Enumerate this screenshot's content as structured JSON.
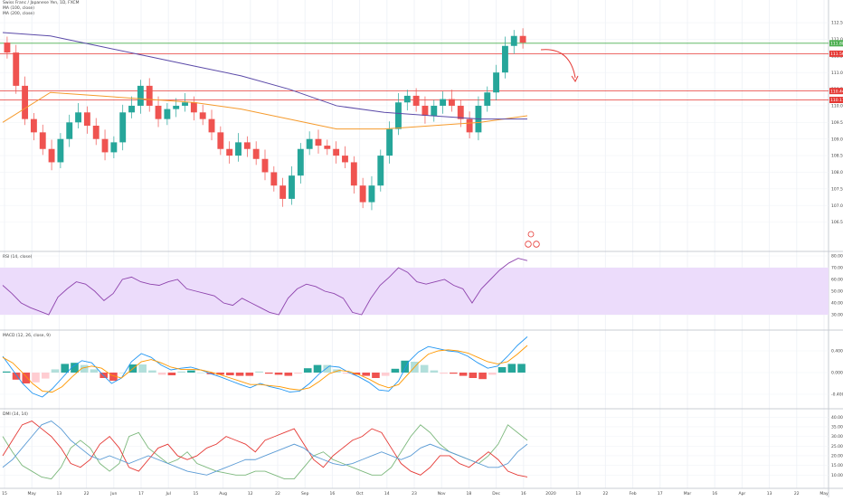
{
  "header": {
    "symbol_line": "Swiss Franc / Japanese Yen, 1D, FXCM",
    "ma1_label": "MA (100, close)",
    "ma2_label": "MA (200, close)"
  },
  "indicators": {
    "rsi_label": "RSI (14, close)",
    "macd_label": "MACD (12, 26, close, 9)",
    "dmi_label": "DMI (14, 14)"
  },
  "colors": {
    "bull": "#26a69a",
    "bear": "#ef5350",
    "ma100": "#f59a2c",
    "ma200": "#5b4aa8",
    "level_green": "#4caf50",
    "level_red": "#e53935",
    "rsi_band": "#ecdcfb",
    "macd_line": "#2196f3",
    "signal_line": "#ff9800",
    "di_plus": "#7cb87c",
    "di_minus": "#e53935",
    "adx": "#5b9bd5"
  },
  "chart_data": [
    {
      "type": "candlestick",
      "panel": "price",
      "title": "Swiss Franc / Japanese Yen, 1D, FXCM",
      "series": [
        {
          "name": "MA (100, close)",
          "values": [
            109.5,
            110.4,
            110.3,
            110.2,
            110.1,
            109.9,
            109.6,
            109.3,
            109.3,
            109.4,
            109.5,
            109.7
          ]
        },
        {
          "name": "MA (200, close)",
          "values": [
            112.2,
            112.1,
            111.8,
            111.5,
            111.2,
            110.9,
            110.5,
            110.0,
            109.8,
            109.7,
            109.6,
            109.6
          ]
        }
      ],
      "closes": [
        111.6,
        110.6,
        109.6,
        109.2,
        108.7,
        108.3,
        109.0,
        109.5,
        109.8,
        109.4,
        109.0,
        108.6,
        108.9,
        109.8,
        110.0,
        110.6,
        110.0,
        109.6,
        109.9,
        110.0,
        110.1,
        109.8,
        109.6,
        109.2,
        108.7,
        108.5,
        108.9,
        108.7,
        108.4,
        108.0,
        107.6,
        107.2,
        107.9,
        108.7,
        109.0,
        108.8,
        108.7,
        108.5,
        108.3,
        107.6,
        107.1,
        107.6,
        108.5,
        109.3,
        110.1,
        110.3,
        110.0,
        109.7,
        110.0,
        110.2,
        110.0,
        109.6,
        109.2,
        110.0,
        110.4,
        111.0,
        111.8,
        112.1,
        111.9
      ],
      "ylim": [
        106.0,
        112.8
      ],
      "yticks": [
        "112.500",
        "112.000",
        "111.500",
        "111.000",
        "110.500",
        "110.000",
        "109.500",
        "109.000",
        "108.500",
        "108.000",
        "107.500",
        "107.000",
        "106.500"
      ],
      "price_labels": [
        "111.880",
        "111.565",
        "110.443",
        "110.175"
      ],
      "levels": [
        111.88,
        111.565,
        110.443,
        110.175
      ]
    },
    {
      "type": "line",
      "panel": "rsi",
      "title": "RSI (14, close)",
      "values": [
        55,
        48,
        40,
        36,
        33,
        30,
        45,
        52,
        58,
        56,
        50,
        42,
        48,
        60,
        62,
        58,
        56,
        55,
        58,
        60,
        52,
        50,
        48,
        46,
        40,
        38,
        44,
        40,
        36,
        32,
        30,
        44,
        52,
        56,
        54,
        50,
        48,
        44,
        32,
        30,
        44,
        55,
        62,
        70,
        66,
        58,
        56,
        58,
        60,
        55,
        52,
        40,
        52,
        60,
        68,
        74,
        78,
        76
      ],
      "ylim": [
        20,
        80
      ],
      "yticks": [
        "80.00",
        "70.00",
        "60.00",
        "50.00",
        "40.00",
        "30.00"
      ]
    },
    {
      "type": "histogram+line",
      "panel": "macd",
      "title": "MACD (12, 26, close, 9)",
      "series": [
        {
          "name": "MACD",
          "values": [
            0.3,
            0.05,
            -0.2,
            -0.38,
            -0.45,
            -0.3,
            -0.1,
            0.1,
            0.22,
            0.18,
            -0.02,
            -0.2,
            -0.1,
            0.2,
            0.35,
            0.28,
            0.14,
            0.05,
            0.08,
            0.1,
            0.05,
            -0.02,
            -0.08,
            -0.15,
            -0.22,
            -0.28,
            -0.2,
            -0.26,
            -0.3,
            -0.36,
            -0.34,
            -0.2,
            -0.02,
            0.12,
            0.1,
            0.0,
            -0.08,
            -0.18,
            -0.32,
            -0.34,
            -0.15,
            0.2,
            0.38,
            0.48,
            0.44,
            0.4,
            0.38,
            0.3,
            0.18,
            0.08,
            0.12,
            0.3,
            0.5,
            0.66
          ]
        },
        {
          "name": "Signal",
          "values": [
            0.28,
            0.18,
            0.0,
            -0.2,
            -0.34,
            -0.36,
            -0.26,
            -0.08,
            0.08,
            0.12,
            0.08,
            -0.05,
            -0.1,
            0.05,
            0.2,
            0.24,
            0.18,
            0.1,
            0.06,
            0.06,
            0.05,
            0.01,
            -0.04,
            -0.1,
            -0.16,
            -0.22,
            -0.22,
            -0.24,
            -0.26,
            -0.3,
            -0.32,
            -0.28,
            -0.16,
            -0.02,
            0.04,
            0.02,
            -0.04,
            -0.12,
            -0.22,
            -0.28,
            -0.22,
            -0.02,
            0.18,
            0.34,
            0.4,
            0.42,
            0.4,
            0.36,
            0.28,
            0.2,
            0.16,
            0.2,
            0.34,
            0.5
          ]
        }
      ],
      "ylim": [
        -0.6,
        0.7
      ],
      "yticks": [
        "0.400",
        "0.000",
        "-0.400"
      ]
    },
    {
      "type": "line",
      "panel": "dmi",
      "title": "DMI (14, 14)",
      "series": [
        {
          "name": "+DI",
          "values": [
            30,
            22,
            15,
            12,
            9,
            8,
            14,
            24,
            28,
            24,
            16,
            12,
            16,
            30,
            32,
            24,
            20,
            16,
            18,
            22,
            16,
            14,
            12,
            11,
            10,
            10,
            12,
            12,
            10,
            8,
            8,
            14,
            20,
            22,
            18,
            16,
            14,
            12,
            10,
            10,
            14,
            22,
            30,
            36,
            32,
            26,
            22,
            20,
            18,
            16,
            20,
            26,
            36,
            32,
            28
          ]
        },
        {
          "name": "-DI",
          "values": [
            20,
            28,
            36,
            38,
            34,
            30,
            24,
            16,
            14,
            18,
            26,
            30,
            24,
            14,
            12,
            18,
            24,
            26,
            20,
            18,
            20,
            24,
            26,
            30,
            28,
            26,
            22,
            28,
            30,
            32,
            34,
            26,
            18,
            14,
            20,
            24,
            28,
            30,
            34,
            32,
            24,
            16,
            12,
            10,
            14,
            20,
            20,
            16,
            14,
            18,
            22,
            18,
            12,
            10,
            9
          ]
        },
        {
          "name": "ADX",
          "values": [
            14,
            18,
            24,
            30,
            36,
            38,
            34,
            28,
            24,
            20,
            18,
            20,
            18,
            16,
            18,
            20,
            18,
            16,
            14,
            12,
            11,
            10,
            12,
            14,
            16,
            18,
            18,
            20,
            22,
            24,
            26,
            24,
            20,
            18,
            16,
            15,
            16,
            18,
            20,
            22,
            20,
            18,
            20,
            24,
            26,
            24,
            22,
            20,
            18,
            16,
            14,
            14,
            16,
            22,
            26
          ]
        }
      ],
      "ylim": [
        5,
        42
      ],
      "yticks": [
        "40.0000",
        "35.0000",
        "30.0000",
        "25.0000",
        "20.0000",
        "15.0000",
        "10.0000"
      ]
    }
  ],
  "time_axis": {
    "labels": [
      "15",
      "May",
      "13",
      "22",
      "Jun",
      "17",
      "Jul",
      "15",
      "Aug",
      "12",
      "22",
      "Sep",
      "16",
      "Oct",
      "14",
      "23",
      "Nov",
      "18",
      "Dec",
      "16",
      "2020",
      "13",
      "22",
      "Feb",
      "17",
      "Mar",
      "16",
      "Apr",
      "13",
      "22",
      "May"
    ]
  }
}
